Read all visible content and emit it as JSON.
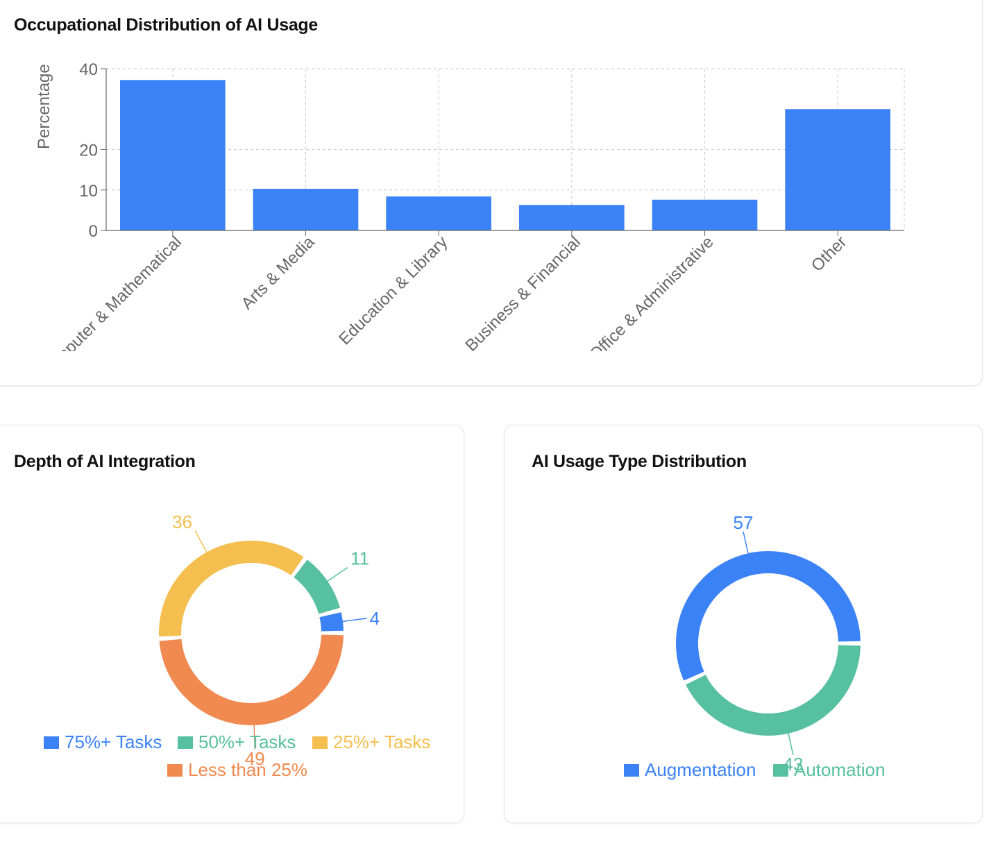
{
  "charts": {
    "occupation": {
      "title": "Occupational Distribution of AI Usage"
    },
    "depth": {
      "title": "Depth of AI Integration"
    },
    "usage_type": {
      "title": "AI Usage Type Distribution"
    }
  },
  "chart_data": [
    {
      "type": "bar",
      "title": "Occupational Distribution of AI Usage",
      "ylabel": "Percentage",
      "xlabel": "",
      "categories": [
        "Computer & Mathematical",
        "Arts & Media",
        "Education & Library",
        "Business & Financial",
        "Office & Administrative",
        "Other"
      ],
      "values": [
        37.2,
        10.3,
        8.4,
        6.3,
        7.6,
        30.0
      ],
      "yticks": [
        0,
        10,
        20,
        40
      ],
      "ylim": [
        0,
        40
      ],
      "grid": true,
      "colors": {
        "bar": "#3b82f6"
      }
    },
    {
      "type": "pie",
      "variant": "donut",
      "title": "Depth of AI Integration",
      "categories": [
        "75%+ Tasks",
        "50%+ Tasks",
        "25%+ Tasks",
        "Less than 25%"
      ],
      "values": [
        4,
        11,
        36,
        49
      ],
      "colors": [
        "#3b82f6",
        "#57c09e",
        "#f5bf4f",
        "#f08a50"
      ],
      "legend": "bottom"
    },
    {
      "type": "pie",
      "variant": "donut",
      "title": "AI Usage Type Distribution",
      "categories": [
        "Augmentation",
        "Automation"
      ],
      "values": [
        57,
        43
      ],
      "colors": [
        "#3b82f6",
        "#57c09e"
      ],
      "legend": "bottom"
    }
  ]
}
